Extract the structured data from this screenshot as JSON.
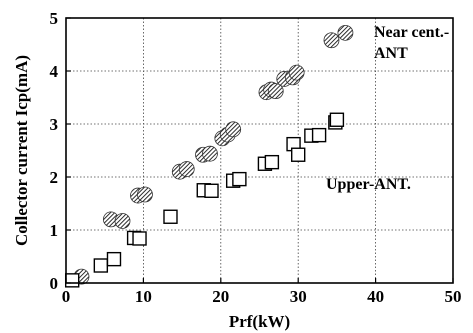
{
  "chart_data": {
    "type": "scatter",
    "xlabel": "Prf(kW)",
    "ylabel": "Collector current Icp(mA)",
    "xlim": [
      0,
      50
    ],
    "ylim": [
      0,
      5
    ],
    "xticks": [
      0,
      10,
      20,
      30,
      40,
      50
    ],
    "yticks": [
      0,
      1,
      2,
      3,
      4,
      5
    ],
    "grid": "dotted",
    "series": [
      {
        "annotation": "Near cent.-\nANT",
        "marker": "hatched-circle",
        "points": [
          [
            2,
            0.12
          ],
          [
            5.8,
            1.2
          ],
          [
            7.3,
            1.17
          ],
          [
            9.3,
            1.65
          ],
          [
            10.2,
            1.67
          ],
          [
            14.7,
            2.1
          ],
          [
            15.6,
            2.15
          ],
          [
            17.7,
            2.42
          ],
          [
            18.6,
            2.44
          ],
          [
            20.2,
            2.73
          ],
          [
            20.9,
            2.8
          ],
          [
            21.6,
            2.9
          ],
          [
            25.9,
            3.6
          ],
          [
            26.5,
            3.65
          ],
          [
            27.1,
            3.62
          ],
          [
            28.2,
            3.85
          ],
          [
            29.3,
            3.88
          ],
          [
            29.8,
            3.97
          ],
          [
            34.3,
            4.58
          ],
          [
            36.1,
            4.72
          ]
        ]
      },
      {
        "annotation": "Upper-ANT.",
        "marker": "open-square",
        "points": [
          [
            0.8,
            0.05
          ],
          [
            4.5,
            0.33
          ],
          [
            6.2,
            0.45
          ],
          [
            8.8,
            0.85
          ],
          [
            9.5,
            0.84
          ],
          [
            13.5,
            1.25
          ],
          [
            17.8,
            1.75
          ],
          [
            18.8,
            1.74
          ],
          [
            21.6,
            1.93
          ],
          [
            22.4,
            1.96
          ],
          [
            25.7,
            2.25
          ],
          [
            26.6,
            2.28
          ],
          [
            29.4,
            2.62
          ],
          [
            30.0,
            2.42
          ],
          [
            31.7,
            2.78
          ],
          [
            32.7,
            2.79
          ],
          [
            34.8,
            3.03
          ],
          [
            35.0,
            3.08
          ]
        ]
      }
    ]
  }
}
